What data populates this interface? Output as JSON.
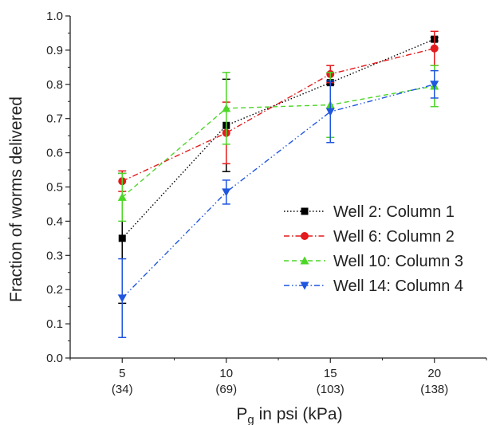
{
  "chart_data": {
    "type": "line",
    "title": "",
    "xlabel": "P",
    "xlabel_sub": "g",
    "xlabel_rest": " in psi (kPa)",
    "ylabel": "Fraction of worms delivered",
    "x": [
      5,
      10,
      15,
      20
    ],
    "x_tick_labels": [
      "5",
      "10",
      "15",
      "20"
    ],
    "x_tick_sublabels": [
      "(34)",
      "(69)",
      "(103)",
      "(138)"
    ],
    "xlim": [
      2.5,
      22.5
    ],
    "ylim": [
      0.0,
      1.0
    ],
    "y_ticks": [
      "0.0",
      "0.1",
      "0.2",
      "0.3",
      "0.4",
      "0.5",
      "0.6",
      "0.7",
      "0.8",
      "0.9",
      "1.0"
    ],
    "grid": false,
    "legend_position": "right",
    "series": [
      {
        "name": "Well 2: Column 1",
        "color": "#000000",
        "marker": "square",
        "line_style": "dotted",
        "values": [
          0.35,
          0.68,
          0.805,
          0.932
        ],
        "errors": [
          0.19,
          0.135,
          0.005,
          0.005
        ]
      },
      {
        "name": "Well 6: Column 2",
        "color": "#e41a1c",
        "marker": "circle",
        "line_style": "dash-dot",
        "values": [
          0.517,
          0.658,
          0.83,
          0.905
        ],
        "errors": [
          0.03,
          0.09,
          0.025,
          0.05
        ]
      },
      {
        "name": "Well 10: Column 3",
        "color": "#4cd626",
        "marker": "triangle-up",
        "line_style": "dashed",
        "values": [
          0.47,
          0.73,
          0.74,
          0.795
        ],
        "errors": [
          0.07,
          0.105,
          0.095,
          0.06
        ]
      },
      {
        "name": "Well 14: Column 4",
        "color": "#1f56e0",
        "marker": "triangle-down",
        "line_style": "dash-dot-dot",
        "values": [
          0.175,
          0.485,
          0.72,
          0.8
        ],
        "errors": [
          0.115,
          0.035,
          0.09,
          0.04
        ]
      }
    ]
  }
}
